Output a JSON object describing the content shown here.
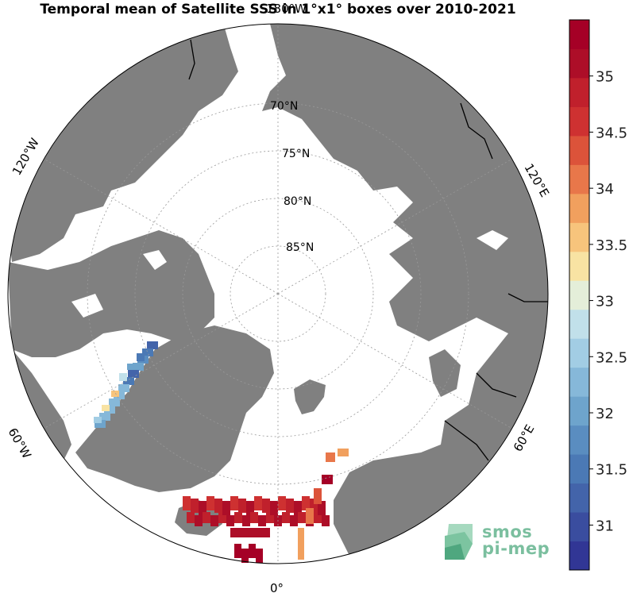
{
  "title": "Temporal mean of Satellite SSS in 1°x1° boxes over 2010-2021",
  "map": {
    "projection": "north-polar-stereographic",
    "land_color": "#808080",
    "ocean_color": "#ffffff",
    "lat_labels": [
      "70°N",
      "75°N",
      "80°N",
      "85°N"
    ],
    "lon_labels": {
      "top": "180°W",
      "top_left": "120°W",
      "left_bottom": "60°W",
      "bottom": "0°",
      "right_bottom": "60°E",
      "top_right": "120°E"
    }
  },
  "colorbar": {
    "min": 30.6,
    "max": 35.5,
    "ticks": [
      "31",
      "31.5",
      "32",
      "32.5",
      "33",
      "33.5",
      "34",
      "34.5",
      "35"
    ],
    "colors": [
      "#313695",
      "#3a4d9f",
      "#4364aa",
      "#4b79b5",
      "#5a8dc0",
      "#6ea4cc",
      "#86b8d9",
      "#a2cde4",
      "#c1e0ea",
      "#e4eed9",
      "#f8e3a3",
      "#f7c47c",
      "#f1a05e",
      "#e8774a",
      "#dc533a",
      "#ce3131",
      "#c0202c",
      "#ad0e28",
      "#a50026"
    ]
  },
  "logo": {
    "line1": "smos",
    "line2": "pi-mep"
  }
}
